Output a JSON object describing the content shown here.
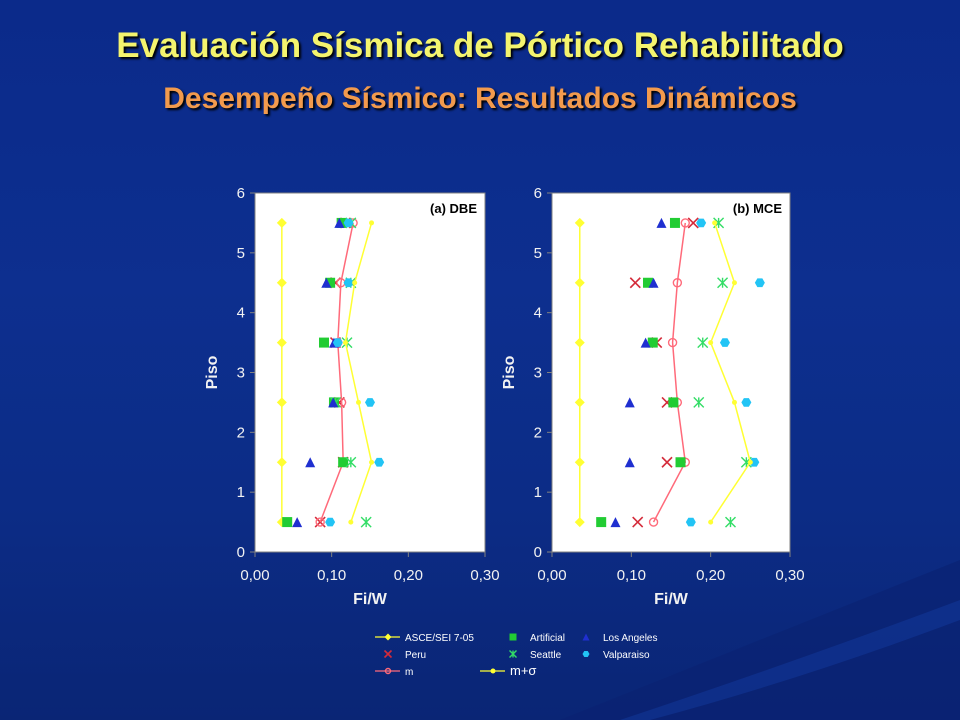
{
  "header": {
    "title": "Evaluación Sísmica de Pórtico Rehabilitado",
    "subtitle": "Desempeño Sísmico: Resultados Dinámicos"
  },
  "colors": {
    "asce": "#ffff33",
    "peru": "#d42b3a",
    "m": "#ff6a7a",
    "artificial": "#22cc33",
    "seattle": "#ffff33",
    "los_angeles": "#1f2fd0",
    "valparaiso": "#22c4f5",
    "msigma": "#ffff33"
  },
  "chart_data": [
    {
      "type": "scatter",
      "panel_label": "(a) DBE",
      "xlabel": "Fi/W",
      "ylabel": "Piso",
      "xlim": [
        0,
        0.3
      ],
      "ylim": [
        0,
        6
      ],
      "x_ticks": [
        "0,00",
        "0,10",
        "0,20",
        "0,30"
      ],
      "y_ticks": [
        "0",
        "1",
        "2",
        "3",
        "4",
        "5",
        "6"
      ],
      "floors": [
        0.5,
        1.5,
        2.5,
        3.5,
        4.5,
        5.5
      ],
      "series": [
        {
          "name": "ASCE/SEI 7-05",
          "marker": "diamond",
          "line": true,
          "values": [
            0.035,
            0.035,
            0.035,
            0.035,
            0.035,
            0.035
          ]
        },
        {
          "name": "Peru",
          "marker": "x",
          "line": false,
          "values": [
            0.085,
            0.115,
            0.11,
            0.105,
            0.105,
            0.118
          ]
        },
        {
          "name": "m",
          "marker": "circle",
          "line": true,
          "values": [
            0.085,
            0.115,
            0.113,
            0.108,
            0.112,
            0.128
          ]
        },
        {
          "name": "Artificial",
          "marker": "square",
          "line": false,
          "values": [
            0.042,
            0.115,
            0.103,
            0.09,
            0.098,
            0.113
          ]
        },
        {
          "name": "Seattle",
          "marker": "star",
          "line": false,
          "values": [
            0.145,
            0.125,
            0.105,
            0.12,
            0.125,
            0.125
          ]
        },
        {
          "name": "Los Angeles",
          "marker": "triangle",
          "line": false,
          "values": [
            0.055,
            0.072,
            0.102,
            0.103,
            0.093,
            0.11
          ]
        },
        {
          "name": "Valparaiso",
          "marker": "hexagon",
          "line": false,
          "values": [
            0.098,
            0.162,
            0.15,
            0.108,
            0.122,
            0.122
          ]
        },
        {
          "name": "m+σ",
          "marker": "dot",
          "line": true,
          "values": [
            0.125,
            0.152,
            0.135,
            0.118,
            0.13,
            0.152
          ]
        }
      ]
    },
    {
      "type": "scatter",
      "panel_label": "(b) MCE",
      "xlabel": "Fi/W",
      "ylabel": "Piso",
      "xlim": [
        0,
        0.3
      ],
      "ylim": [
        0,
        6
      ],
      "x_ticks": [
        "0,00",
        "0,10",
        "0,20",
        "0,30"
      ],
      "y_ticks": [
        "0",
        "1",
        "2",
        "3",
        "4",
        "5",
        "6"
      ],
      "floors": [
        0.5,
        1.5,
        2.5,
        3.5,
        4.5,
        5.5
      ],
      "series": [
        {
          "name": "ASCE/SEI 7-05",
          "marker": "diamond",
          "line": true,
          "values": [
            0.035,
            0.035,
            0.035,
            0.035,
            0.035,
            0.035
          ]
        },
        {
          "name": "Peru",
          "marker": "x",
          "line": false,
          "values": [
            0.108,
            0.145,
            0.145,
            0.132,
            0.105,
            0.178
          ]
        },
        {
          "name": "m",
          "marker": "circle",
          "line": true,
          "values": [
            0.128,
            0.168,
            0.158,
            0.152,
            0.158,
            0.168
          ]
        },
        {
          "name": "Artificial",
          "marker": "square",
          "line": false,
          "values": [
            0.062,
            0.162,
            0.153,
            0.127,
            0.121,
            0.155
          ]
        },
        {
          "name": "Seattle",
          "marker": "star",
          "line": false,
          "values": [
            0.225,
            0.245,
            0.185,
            0.19,
            0.215,
            0.21
          ]
        },
        {
          "name": "Los Angeles",
          "marker": "triangle",
          "line": false,
          "values": [
            0.08,
            0.098,
            0.098,
            0.118,
            0.128,
            0.138
          ]
        },
        {
          "name": "Valparaiso",
          "marker": "hexagon",
          "line": false,
          "values": [
            0.175,
            0.255,
            0.245,
            0.218,
            0.262,
            0.188
          ]
        },
        {
          "name": "m+σ",
          "marker": "dot",
          "line": true,
          "values": [
            0.2,
            0.25,
            0.23,
            0.2,
            0.23,
            0.205
          ]
        }
      ]
    }
  ],
  "legend": {
    "items": [
      {
        "name": "ASCE/SEI 7-05",
        "marker": "diamond",
        "line": true
      },
      {
        "name": "Artificial",
        "marker": "square",
        "line": false
      },
      {
        "name": "Los Angeles",
        "marker": "triangle",
        "line": false
      },
      {
        "name": "Peru",
        "marker": "x",
        "line": false
      },
      {
        "name": "Seattle",
        "marker": "star",
        "line": false
      },
      {
        "name": "Valparaiso",
        "marker": "hexagon",
        "line": false
      },
      {
        "name": "m",
        "marker": "circle",
        "line": true
      },
      {
        "name": "m+σ",
        "marker": "dot",
        "line": true
      }
    ]
  }
}
